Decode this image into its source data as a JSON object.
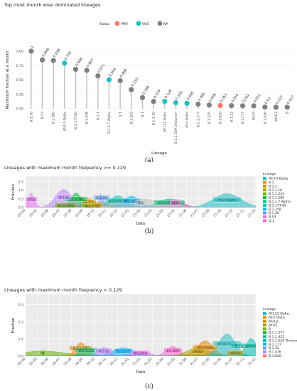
{
  "charts": [
    {
      "type": "lollipop",
      "title": "Top most month wise dominated lineages",
      "xlabel": "Lineage",
      "ylabel": "Maximum fraction at a month",
      "ylim": [
        0,
        1
      ],
      "yticks": [
        "0.00",
        "0.25",
        "0.50",
        "0.75",
        "1.00"
      ],
      "legend_title": "Status",
      "legend": [
        {
          "name": "PMV",
          "color": "#f8766d"
        },
        {
          "name": "VOC",
          "color": "#1fbfc4"
        },
        {
          "name": "NA",
          "color": "#7f7f7f"
        }
      ],
      "points": [
        {
          "lineage": "B.1.30",
          "value": 1.0,
          "label": "1",
          "status": "NA"
        },
        {
          "lineage": "B.53",
          "value": 0.849,
          "label": "0.849",
          "status": "NA"
        },
        {
          "lineage": "B.1.280",
          "value": 0.838,
          "label": "0.838",
          "status": "NA"
        },
        {
          "lineage": "AY.4.5 Delta",
          "value": 0.793,
          "label": "0.793",
          "status": "VOC"
        },
        {
          "lineage": "B.1.177.60",
          "value": 0.686,
          "label": "0.686",
          "status": "NA"
        },
        {
          "lineage": "B.1.258",
          "value": 0.667,
          "label": "0.667",
          "status": "NA"
        },
        {
          "lineage": "B.1.1",
          "value": 0.571,
          "label": "0.571",
          "status": "NA"
        },
        {
          "lineage": "B.1.1.7 Alpha",
          "value": 0.504,
          "label": "0.504",
          "status": "VOC"
        },
        {
          "lineage": "Q.1",
          "value": 0.488,
          "label": "0.488",
          "status": "NA"
        },
        {
          "lineage": "B.1.243",
          "value": 0.333,
          "label": "0.333",
          "status": "NA"
        },
        {
          "lineage": "B.1",
          "value": 0.194,
          "label": "0.194",
          "status": "NA"
        },
        {
          "lineage": "B.1.1.10",
          "value": 0.129,
          "label": "0.129",
          "status": "NA"
        },
        {
          "lineage": "AY.122 Delta",
          "value": 0.128,
          "label": "0.128",
          "status": "VOC"
        },
        {
          "lineage": "B.1.1.529 Omicron*",
          "value": 0.105,
          "label": "0.105",
          "status": "VOC"
        },
        {
          "lineage": "AY.4 Delta",
          "value": 0.095,
          "label": "0.095",
          "status": "VOC"
        },
        {
          "lineage": "B.1.1.277",
          "value": 0.081,
          "label": "0.081",
          "status": "NA"
        },
        {
          "lineage": "B.1.325",
          "value": 0.065,
          "label": "0.065",
          "status": "NA"
        },
        {
          "lineage": "B.1.620",
          "value": 0.057,
          "label": "0.057",
          "status": "PMV"
        },
        {
          "lineage": "B.1.22",
          "value": 0.054,
          "label": "0.054",
          "status": "NA"
        },
        {
          "lineage": "B.1.177",
          "value": 0.052,
          "label": "0.052",
          "status": "NA"
        },
        {
          "lineage": "AY.43",
          "value": 0.051,
          "label": "0.051",
          "status": "NA"
        },
        {
          "lineage": "B.1.416",
          "value": 0.03,
          "label": "0.03",
          "status": "NA"
        },
        {
          "lineage": "AY.4.2",
          "value": 0.027,
          "label": "0.027",
          "status": "NA"
        },
        {
          "lineage": "B",
          "value": 0.027,
          "label": "0.027",
          "status": "NA"
        }
      ],
      "caption": "(a)"
    },
    {
      "type": "area",
      "title": "Lineages with maximum month frequency >= 0.129",
      "xlabel": "Date",
      "ylabel": "Fraction",
      "ylim": [
        0,
        1.8
      ],
      "yticks": [
        0,
        0.5,
        1.0,
        1.5
      ],
      "ytick_labels": [
        "0.0",
        "0.5",
        "1.0",
        "1.5"
      ],
      "x_dates": [
        "20-04",
        "20-05",
        "20-06",
        "20-07",
        "20-08",
        "20-09",
        "20-10",
        "20-11",
        "20-12",
        "21-01",
        "21-02",
        "21-03",
        "21-04",
        "21-05",
        "21-06",
        "21-07",
        "21-08",
        "21-09",
        "21-10",
        "21-11",
        "21-12"
      ],
      "legend_title": "Lineage",
      "series": [
        {
          "name": "AY.4.5 Delta",
          "color": "#1fbfc4",
          "peak": 17.5,
          "width": 2.5,
          "height": 0.8,
          "tag": "AY.4.5 Delta"
        },
        {
          "name": "B.1",
          "color": "#e58700",
          "peak": 6.2,
          "width": 2.5,
          "height": 0.3,
          "tag": "B.1"
        },
        {
          "name": "B.1.1",
          "color": "#c99800",
          "peak": 5.5,
          "width": 1.0,
          "height": 0.55,
          "tag": "B.1.1"
        },
        {
          "name": "B.1.1.10",
          "color": "#a3a500",
          "peak": 5.8,
          "width": 0.8,
          "height": 0.13,
          "tag": "B.1.1.10"
        },
        {
          "name": "B.1.1.243",
          "color": "#6bb100",
          "peak": 3.5,
          "width": 1.5,
          "height": 0.2,
          "tag": "B.1.1.243"
        },
        {
          "name": "B.1.1.280",
          "color": "#00ba38",
          "peak": 4.4,
          "width": 1.0,
          "height": 0.85,
          "tag": "B.1.1.280"
        },
        {
          "name": "B.1.1.7 Alpha",
          "color": "#00bf7d",
          "peak": 12.5,
          "width": 2.0,
          "height": 0.5,
          "tag": "B.1.1.7 Alpha"
        },
        {
          "name": "B.1.177.60",
          "color": "#00c0af",
          "peak": 8.0,
          "width": 1.5,
          "height": 0.68,
          "tag": "B.1.177.60"
        },
        {
          "name": "B.1.258",
          "color": "#00b0f6",
          "peak": 9.2,
          "width": 1.5,
          "height": 0.66,
          "tag": "B.1.258"
        },
        {
          "name": "B.1.30",
          "color": "#619cff",
          "peak": 6.6,
          "width": 0.3,
          "height": 1.0,
          "tag": "B.1.30"
        },
        {
          "name": "B.1.1.7",
          "color": "#b983ff",
          "peak": 3.3,
          "width": 1.5,
          "height": 1.05,
          "tag": "B.1.1"
        },
        {
          "name": "B.53",
          "color": "#e76bf3",
          "peak": 0.5,
          "width": 0.6,
          "height": 0.84,
          "tag": "B.53"
        },
        {
          "name": "Q.1",
          "color": "#fd61d1",
          "peak": 13.0,
          "width": 1.5,
          "height": 0.48,
          "tag": "Q.1"
        },
        {
          "name": "B.1.177.60 gray",
          "color": "#bfbfbf",
          "peak": 10.0,
          "width": 4.0,
          "height": 0.5,
          "tag": "Q.1"
        }
      ],
      "legend_entries": [
        "AY.4.5 Delta",
        "B.1",
        "B.1.1",
        "B.1.1.10",
        "B.1.1.243",
        "B.1.1.280",
        "B.1.1.7 Alpha",
        "B.1.177.60",
        "B.1.258",
        "B.1.30",
        "B.53",
        "Q.1"
      ],
      "legend_colors": [
        "#1fbfc4",
        "#e58700",
        "#c99800",
        "#a3a500",
        "#6bb100",
        "#00ba38",
        "#00bf7d",
        "#00c0af",
        "#00b0f6",
        "#619cff",
        "#e76bf3",
        "#fd61d1"
      ],
      "caption": "(b)"
    },
    {
      "type": "area",
      "title": "Lineages with maximum month frequency < 0.129",
      "xlabel": "Date",
      "ylabel": "Fraction",
      "ylim": [
        0,
        0.36
      ],
      "yticks": [
        0,
        0.1,
        0.2,
        0.3
      ],
      "ytick_labels": [
        "0.0",
        "0.1",
        "0.2",
        "0.3"
      ],
      "x_dates": [
        "20-04",
        "20-05",
        "20-06",
        "20-07",
        "20-08",
        "20-09",
        "20-10",
        "20-11",
        "20-12",
        "21-01",
        "21-02",
        "21-03",
        "21-04",
        "21-05",
        "21-06",
        "21-07",
        "21-08",
        "21-09",
        "21-10",
        "21-11",
        "21-12"
      ],
      "legend_title": "Lineage",
      "legend_entries": [
        "AY.122 Delta",
        "AY.4 Delta",
        "AY.4.2",
        "AY.43",
        "B",
        "B.1.1.277",
        "B.1.1.325",
        "B.1.1.529 Omicron*",
        "B.1.177",
        "B.1.22",
        "B.1.416",
        "B.1.620"
      ],
      "legend_colors": [
        "#1fbfc4",
        "#e58700",
        "#c99800",
        "#a3a500",
        "#6bb100",
        "#00ba38",
        "#00bf7d",
        "#00c0af",
        "#00b0f6",
        "#619cff",
        "#b983ff",
        "#f8766d"
      ],
      "series": [
        {
          "name": "B",
          "color": "#6bb100",
          "peak": 1.5,
          "width": 4.0,
          "height": 0.03,
          "tag": "B"
        },
        {
          "name": "AY.4.2",
          "color": "#c99800",
          "peak": 18.2,
          "width": 1.2,
          "height": 0.03,
          "tag": "AY.4.2"
        },
        {
          "name": "B.1.1.277",
          "color": "#e58700",
          "peak": 4.8,
          "width": 1.0,
          "height": 0.08,
          "tag": "B.1.1.277"
        },
        {
          "name": "B.1.1.325",
          "color": "#00bf7d",
          "peak": 5.3,
          "width": 1.0,
          "height": 0.06,
          "tag": "B.1.1.325"
        },
        {
          "name": "B.1.177",
          "color": "#00b0f6",
          "peak": 8.5,
          "width": 2.0,
          "height": 0.05,
          "tag": "B.1.177"
        },
        {
          "name": "B.1.22",
          "color": "#b983ff",
          "peak": 6.8,
          "width": 1.0,
          "height": 0.054,
          "tag": "B.1.22"
        },
        {
          "name": "B.1.416",
          "color": "#e76bf3",
          "peak": 10.0,
          "width": 1.5,
          "height": 0.03,
          "tag": "B.1.416"
        },
        {
          "name": "B.1.620",
          "color": "#fd61d1",
          "peak": 12.8,
          "width": 1.2,
          "height": 0.057,
          "tag": "B.1.620"
        },
        {
          "name": "AY.43",
          "color": "#a3a500",
          "peak": 15.0,
          "width": 2.0,
          "height": 0.05,
          "tag": "AY.43"
        },
        {
          "name": "AY.4 Delta",
          "color": "#e58700",
          "peak": 15.6,
          "width": 1.5,
          "height": 0.09,
          "tag": "AY.4 Delta"
        },
        {
          "name": "AY.122 Delta",
          "color": "#1fbfc4",
          "peak": 17.5,
          "width": 1.5,
          "height": 0.13,
          "tag": "AY.122 Delta"
        },
        {
          "name": "B.1.1.529 Omicron*",
          "color": "#00c0af",
          "peak": 19.6,
          "width": 1.0,
          "height": 0.105,
          "tag": "B.1.1.529 Omicron*"
        }
      ],
      "caption": "(c)"
    }
  ]
}
